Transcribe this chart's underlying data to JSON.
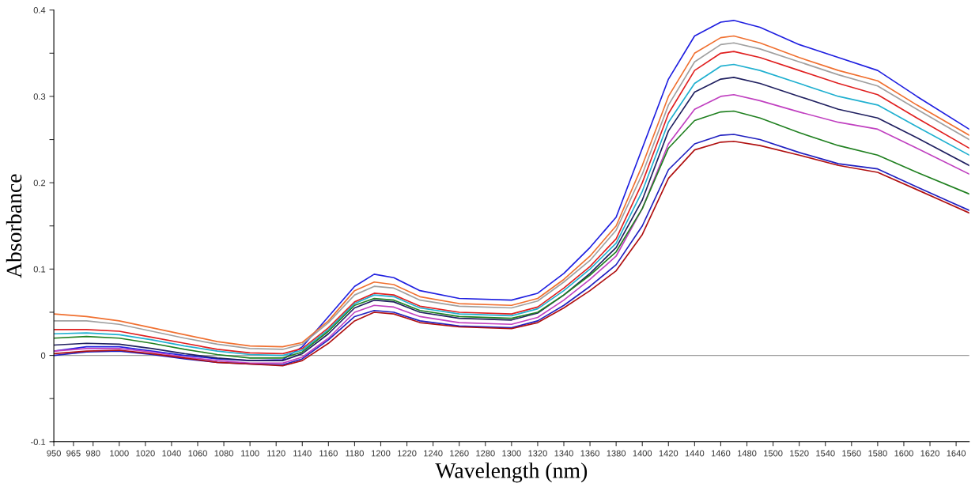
{
  "chart_data": {
    "type": "line",
    "xlabel": "Wavelength (nm)",
    "ylabel": "Absorbance",
    "x": [
      950,
      975,
      1000,
      1025,
      1050,
      1075,
      1100,
      1125,
      1140,
      1160,
      1180,
      1195,
      1210,
      1230,
      1260,
      1300,
      1320,
      1340,
      1360,
      1380,
      1400,
      1420,
      1440,
      1460,
      1470,
      1490,
      1520,
      1550,
      1580,
      1610,
      1650
    ],
    "xlim": [
      950,
      1650
    ],
    "xticks": [
      950,
      965,
      980,
      1000,
      1020,
      1040,
      1060,
      1080,
      1100,
      1120,
      1140,
      1160,
      1180,
      1200,
      1220,
      1240,
      1260,
      1280,
      1300,
      1320,
      1340,
      1360,
      1380,
      1400,
      1420,
      1440,
      1460,
      1480,
      1500,
      1520,
      1540,
      1560,
      1580,
      1600,
      1620,
      1640
    ],
    "ylim": [
      -0.1,
      0.4
    ],
    "yticks": [
      {
        "value": -0.1,
        "label": "-0.1"
      },
      {
        "value": -0.05,
        "label": null
      },
      0,
      {
        "value": 0.05,
        "label": null
      },
      0.1,
      {
        "value": 0.15,
        "label": null
      },
      0.2,
      {
        "value": 0.25,
        "label": null
      },
      0.3,
      {
        "value": 0.35,
        "label": null
      },
      0.4
    ],
    "ref_lines": [
      {
        "axis": "y",
        "value": 0,
        "label": null,
        "color": "#a0a0a0"
      }
    ],
    "grid": false,
    "legend": false,
    "marker": "none",
    "line_style": "solid",
    "series": [
      {
        "color": "#1f1fe0",
        "values": [
          0.005,
          0.01,
          0.01,
          0.005,
          0.0,
          -0.004,
          -0.006,
          -0.005,
          0.01,
          0.045,
          0.08,
          0.094,
          0.09,
          0.075,
          0.066,
          0.064,
          0.072,
          0.095,
          0.125,
          0.16,
          0.24,
          0.32,
          0.37,
          0.386,
          0.388,
          0.38,
          0.36,
          0.345,
          0.33,
          0.3,
          0.262
        ]
      },
      {
        "color": "#f07030",
        "values": [
          0.048,
          0.045,
          0.04,
          0.032,
          0.024,
          0.016,
          0.011,
          0.01,
          0.015,
          0.04,
          0.075,
          0.085,
          0.082,
          0.068,
          0.06,
          0.058,
          0.066,
          0.088,
          0.115,
          0.15,
          0.22,
          0.3,
          0.35,
          0.368,
          0.37,
          0.362,
          0.345,
          0.33,
          0.318,
          0.29,
          0.255
        ]
      },
      {
        "color": "#a0a0a0",
        "values": [
          0.04,
          0.04,
          0.036,
          0.028,
          0.02,
          0.013,
          0.008,
          0.007,
          0.013,
          0.038,
          0.07,
          0.08,
          0.078,
          0.064,
          0.057,
          0.055,
          0.063,
          0.085,
          0.11,
          0.145,
          0.21,
          0.29,
          0.34,
          0.36,
          0.362,
          0.355,
          0.34,
          0.325,
          0.312,
          0.285,
          0.25
        ]
      },
      {
        "color": "#e02020",
        "values": [
          0.03,
          0.03,
          0.028,
          0.021,
          0.014,
          0.007,
          0.003,
          0.002,
          0.008,
          0.032,
          0.062,
          0.072,
          0.07,
          0.057,
          0.05,
          0.048,
          0.056,
          0.078,
          0.103,
          0.135,
          0.2,
          0.28,
          0.33,
          0.35,
          0.352,
          0.345,
          0.33,
          0.315,
          0.302,
          0.275,
          0.24
        ]
      },
      {
        "color": "#20b0d0",
        "values": [
          0.025,
          0.026,
          0.024,
          0.018,
          0.011,
          0.005,
          0.001,
          0.0,
          0.006,
          0.03,
          0.06,
          0.07,
          0.068,
          0.055,
          0.048,
          0.046,
          0.054,
          0.075,
          0.1,
          0.13,
          0.19,
          0.27,
          0.315,
          0.335,
          0.337,
          0.33,
          0.315,
          0.3,
          0.29,
          0.265,
          0.232
        ]
      },
      {
        "color": "#202060",
        "values": [
          0.012,
          0.014,
          0.013,
          0.008,
          0.002,
          -0.003,
          -0.006,
          -0.006,
          0.002,
          0.025,
          0.055,
          0.064,
          0.062,
          0.05,
          0.043,
          0.041,
          0.049,
          0.07,
          0.095,
          0.125,
          0.18,
          0.26,
          0.305,
          0.32,
          0.322,
          0.315,
          0.3,
          0.285,
          0.275,
          0.252,
          0.22
        ]
      },
      {
        "color": "#c040c0",
        "values": [
          0.005,
          0.008,
          0.008,
          0.004,
          -0.002,
          -0.006,
          -0.009,
          -0.009,
          -0.002,
          0.02,
          0.05,
          0.058,
          0.056,
          0.045,
          0.038,
          0.036,
          0.044,
          0.064,
          0.088,
          0.115,
          0.17,
          0.245,
          0.285,
          0.3,
          0.302,
          0.295,
          0.282,
          0.27,
          0.262,
          0.24,
          0.21
        ]
      },
      {
        "color": "#208020",
        "values": [
          0.02,
          0.022,
          0.02,
          0.014,
          0.007,
          0.001,
          -0.003,
          -0.003,
          0.004,
          0.028,
          0.058,
          0.066,
          0.064,
          0.052,
          0.045,
          0.043,
          0.05,
          0.07,
          0.093,
          0.12,
          0.17,
          0.24,
          0.272,
          0.282,
          0.283,
          0.275,
          0.258,
          0.243,
          0.232,
          0.212,
          0.187
        ]
      },
      {
        "color": "#2020c0",
        "values": [
          0.0,
          0.004,
          0.005,
          0.001,
          -0.004,
          -0.008,
          -0.01,
          -0.011,
          -0.004,
          0.018,
          0.045,
          0.052,
          0.05,
          0.04,
          0.034,
          0.032,
          0.04,
          0.058,
          0.08,
          0.105,
          0.15,
          0.215,
          0.245,
          0.255,
          0.256,
          0.25,
          0.235,
          0.222,
          0.216,
          0.195,
          0.168
        ]
      },
      {
        "color": "#b01010",
        "values": [
          0.002,
          0.005,
          0.006,
          0.002,
          -0.003,
          -0.008,
          -0.01,
          -0.012,
          -0.006,
          0.014,
          0.04,
          0.05,
          0.048,
          0.038,
          0.033,
          0.031,
          0.038,
          0.055,
          0.075,
          0.098,
          0.14,
          0.205,
          0.238,
          0.247,
          0.248,
          0.243,
          0.232,
          0.22,
          0.212,
          0.192,
          0.165
        ]
      }
    ]
  }
}
